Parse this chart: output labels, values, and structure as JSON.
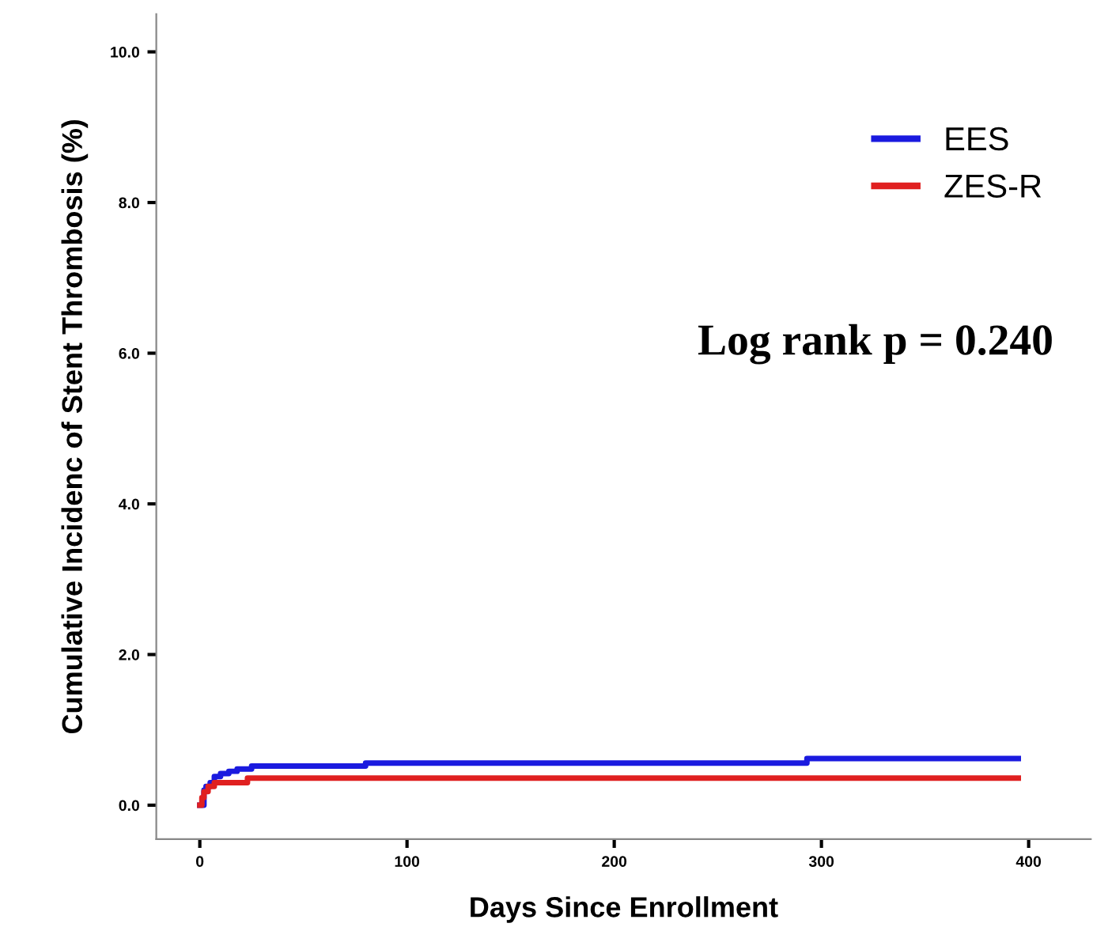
{
  "chart_data": {
    "type": "step",
    "xlabel": "Days Since Enrollment",
    "ylabel": "Cumulative Incidenc of Stent Thrombosis (%)",
    "xlim": [
      -21,
      430
    ],
    "xticks": [
      0,
      100,
      200,
      300,
      400
    ],
    "ylim": [
      -0.45,
      10.5
    ],
    "yticks": [
      {
        "value": 0,
        "label": "0.0"
      },
      {
        "value": 2,
        "label": "2.0"
      },
      {
        "value": 4,
        "label": "4.0"
      },
      {
        "value": 6,
        "label": "6.0"
      },
      {
        "value": 8,
        "label": "8.0"
      },
      {
        "value": 10,
        "label": "10.0"
      }
    ],
    "series": [
      {
        "name": "EES",
        "color": "#1a1adf",
        "x": [
          0,
          2,
          3,
          5,
          7,
          10,
          14,
          18,
          25,
          80,
          293,
          395
        ],
        "values": [
          0,
          0.2,
          0.25,
          0.3,
          0.38,
          0.42,
          0.45,
          0.48,
          0.52,
          0.56,
          0.62,
          0.62
        ]
      },
      {
        "name": "ZES-R",
        "color": "#e02020",
        "x": [
          0,
          1,
          2,
          4,
          7,
          23,
          395
        ],
        "values": [
          0,
          0.1,
          0.18,
          0.25,
          0.3,
          0.36,
          0.36
        ]
      }
    ],
    "annotations": [
      "Log rank p = 0.240"
    ],
    "legend": "top right",
    "grid": false
  }
}
